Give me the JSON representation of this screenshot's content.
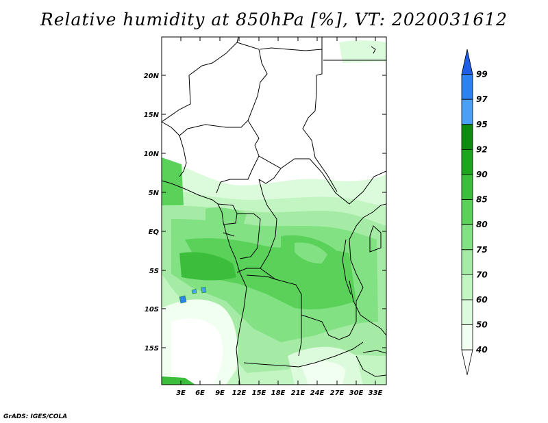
{
  "title": "Relative humidity at 850hPa [%], VT: 2020031612",
  "credit": "GrADS: IGES/COLA",
  "map": {
    "lat_labels": [
      "20N",
      "15N",
      "10N",
      "5N",
      "EQ",
      "5S",
      "10S",
      "15S"
    ],
    "lon_labels": [
      "3E",
      "6E",
      "9E",
      "12E",
      "15E",
      "18E",
      "21E",
      "24E",
      "27E",
      "30E",
      "33E"
    ],
    "lon_range": [
      0,
      34.5
    ],
    "lat_range": [
      -19.5,
      24.5
    ]
  },
  "colorbar": {
    "levels": [
      "99",
      "97",
      "95",
      "92",
      "90",
      "85",
      "80",
      "75",
      "70",
      "60",
      "50",
      "40"
    ],
    "colors": [
      "#1e5ee6",
      "#2d82f0",
      "#4aa0f5",
      "#0f8c0f",
      "#1ea51e",
      "#3cbe3c",
      "#5ad25a",
      "#82e182",
      "#a5eba5",
      "#c3f5c3",
      "#dcfadc",
      "#f0fff0",
      "#ffffff"
    ]
  }
}
